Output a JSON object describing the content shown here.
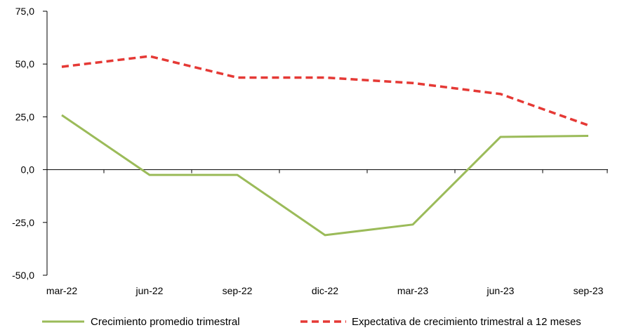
{
  "chart_data": {
    "type": "line",
    "categories": [
      "mar-22",
      "jun-22",
      "sep-22",
      "dic-22",
      "mar-23",
      "jun-23",
      "sep-23"
    ],
    "series": [
      {
        "name": "Crecimiento promedio trimestral",
        "values": [
          25.8,
          -2.5,
          -2.5,
          -31.0,
          -26.0,
          15.5,
          16.0
        ],
        "color": "#9bbb59",
        "style": "solid"
      },
      {
        "name": "Expectativa de crecimiento trimestral a 12 meses",
        "values": [
          48.7,
          53.7,
          43.6,
          43.6,
          41.0,
          35.8,
          21.0
        ],
        "color": "#e53935",
        "style": "dashed"
      }
    ],
    "yticks": [
      "75,0",
      "50,0",
      "25,0",
      "0,0",
      "-25,0",
      "-50,0"
    ],
    "ylim": [
      -50,
      75
    ],
    "grid": false,
    "legend": "bottom"
  }
}
